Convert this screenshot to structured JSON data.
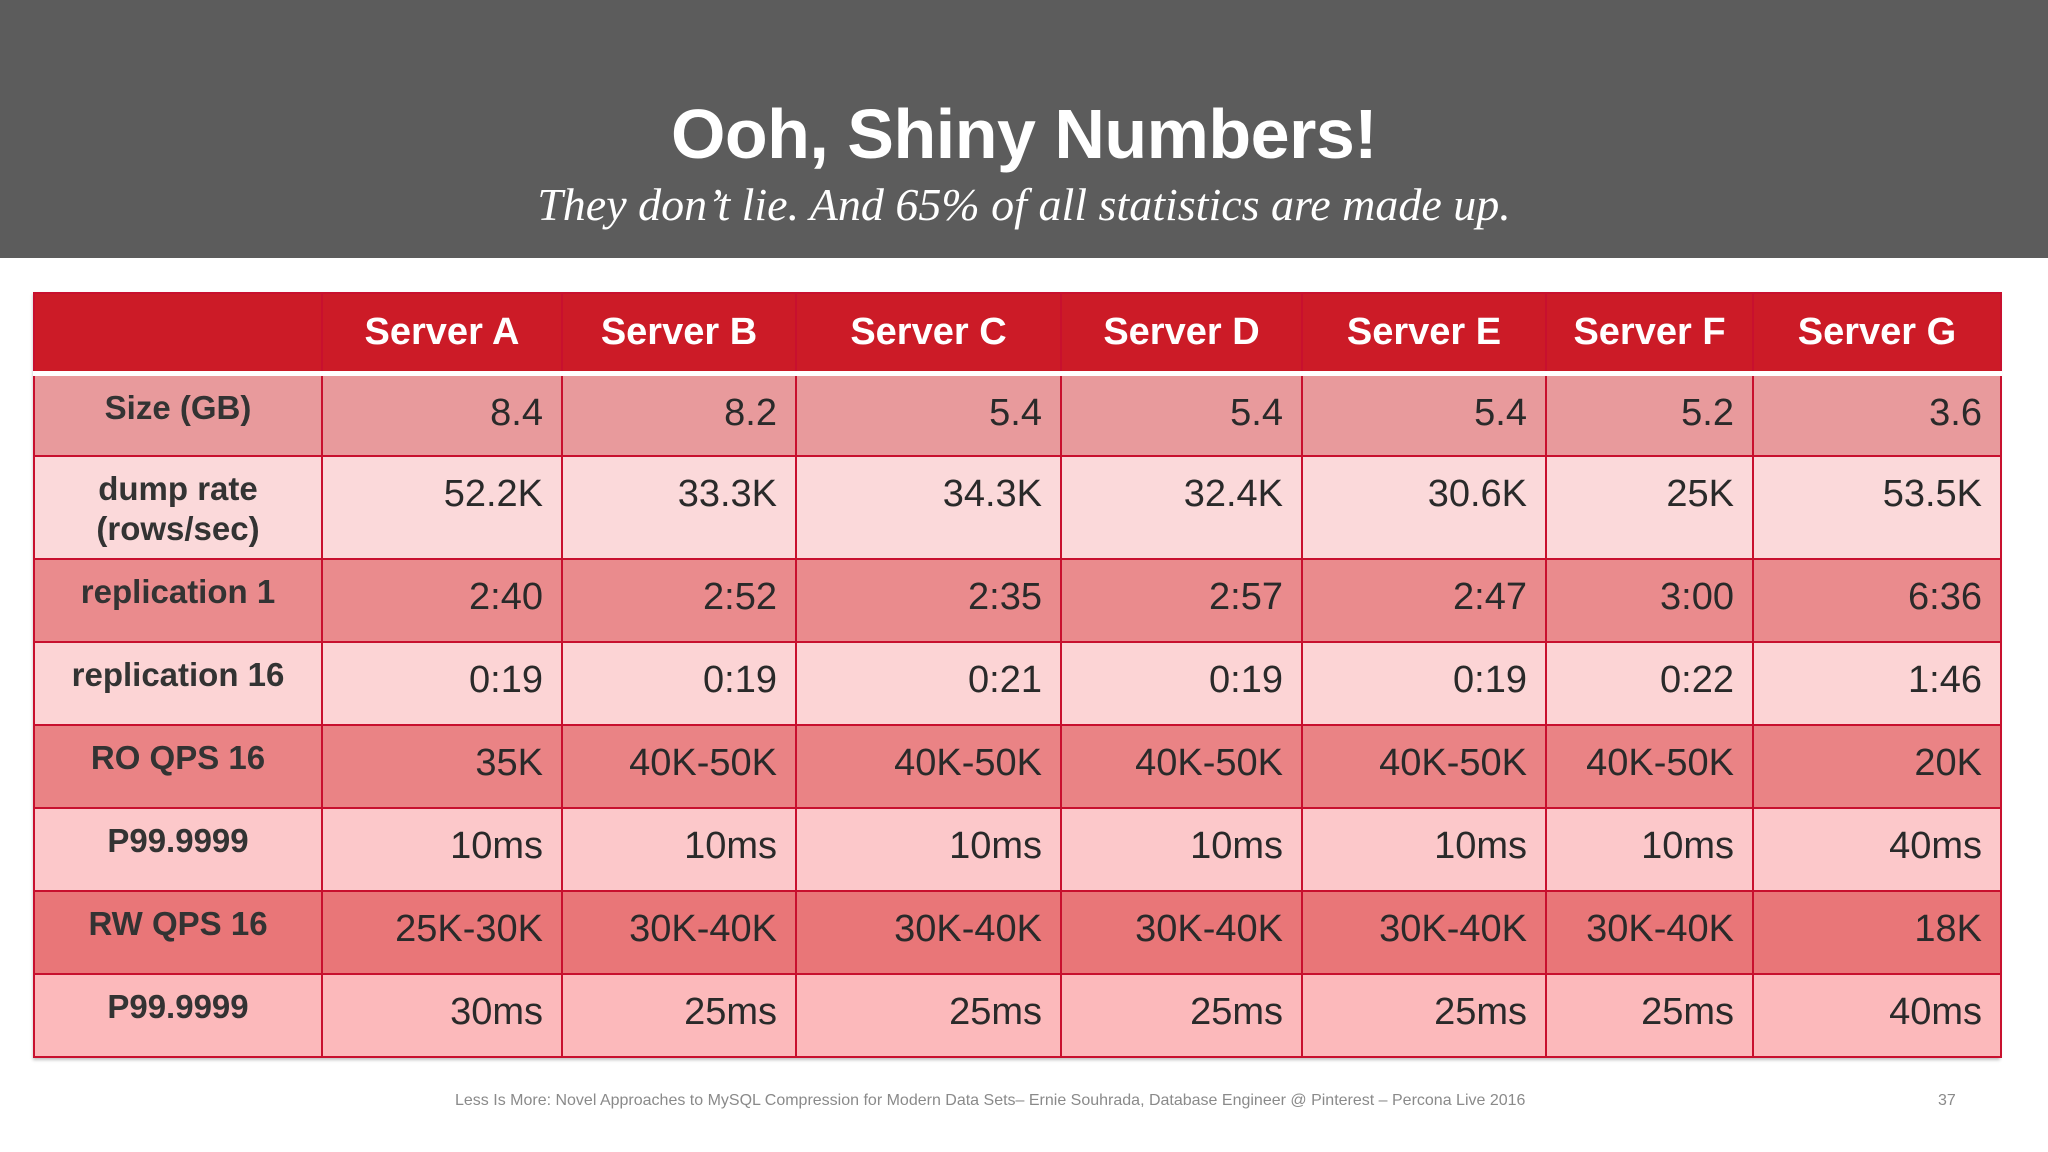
{
  "slide": {
    "title": "Ooh, Shiny Numbers!",
    "subtitle": "They don’t lie.  And 65% of all statistics are made up.",
    "footer": "Less Is More: Novel Approaches to MySQL Compression for Modern Data Sets– Ernie Souhrada, Database Engineer @ Pinterest – Percona Live 2016",
    "page_number": "37"
  },
  "table": {
    "corner": "",
    "headers": [
      "Server A",
      "Server B",
      "Server C",
      "Server D",
      "Server E",
      "Server F",
      "Server G"
    ],
    "rows": [
      {
        "label": "Size (GB)",
        "values": [
          "8.4",
          "8.2",
          "5.4",
          "5.4",
          "5.4",
          "5.2",
          "3.6"
        ]
      },
      {
        "label": "dump rate (rows/sec)",
        "values": [
          "52.2K",
          "33.3K",
          "34.3K",
          "32.4K",
          "30.6K",
          "25K",
          "53.5K"
        ]
      },
      {
        "label": "replication 1",
        "values": [
          "2:40",
          "2:52",
          "2:35",
          "2:57",
          "2:47",
          "3:00",
          "6:36"
        ]
      },
      {
        "label": "replication 16",
        "values": [
          "0:19",
          "0:19",
          "0:21",
          "0:19",
          "0:19",
          "0:22",
          "1:46"
        ]
      },
      {
        "label": "RO QPS 16",
        "values": [
          "35K",
          "40K-50K",
          "40K-50K",
          "40K-50K",
          "40K-50K",
          "40K-50K",
          "20K"
        ]
      },
      {
        "label": "P99.9999",
        "values": [
          "10ms",
          "10ms",
          "10ms",
          "10ms",
          "10ms",
          "10ms",
          "40ms"
        ]
      },
      {
        "label": "RW QPS 16",
        "values": [
          "25K-30K",
          "30K-40K",
          "30K-40K",
          "30K-40K",
          "30K-40K",
          "30K-40K",
          "18K"
        ]
      },
      {
        "label": "P99.9999",
        "values": [
          "30ms",
          "25ms",
          "25ms",
          "25ms",
          "25ms",
          "25ms",
          "40ms"
        ]
      }
    ]
  },
  "colors": {
    "header_bg": "#5c5c5c",
    "table_header_bg": "#cc1b27",
    "border": "#c8102e"
  }
}
